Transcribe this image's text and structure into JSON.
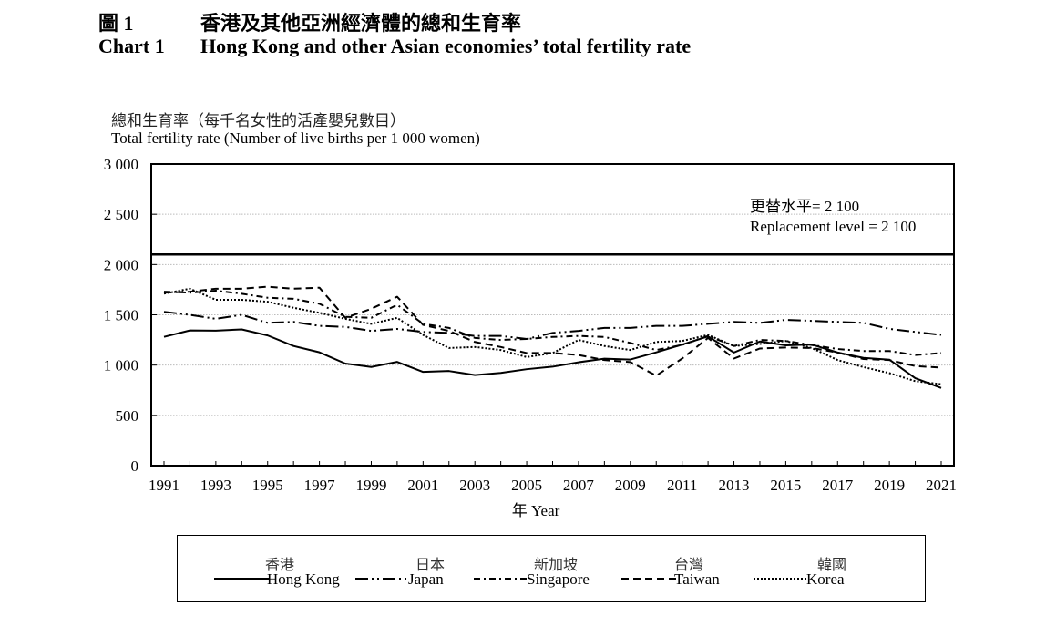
{
  "header": {
    "chart_number_zh": "圖 1",
    "title_zh": "香港及其他亞洲經濟體的總和生育率",
    "chart_number_en": "Chart 1",
    "title_en": "Hong Kong and other Asian economies’ total fertility rate"
  },
  "chart_data": {
    "type": "line",
    "title": "Hong Kong and other Asian economies’ total fertility rate",
    "ylabel_zh": "總和生育率（每千名女性的活產嬰兒數目）",
    "ylabel": "Total fertility rate (Number of live births per 1 000 women)",
    "xlabel": "年 Year",
    "ylim": [
      0,
      3000
    ],
    "xlim": [
      1991,
      2021
    ],
    "yticks": [
      0,
      500,
      1000,
      1500,
      2000,
      2500,
      3000
    ],
    "ytick_labels": [
      "0",
      "500",
      "1 000",
      "1 500",
      "2 000",
      "2 500",
      "3 000"
    ],
    "xtick_labels": [
      "1991",
      "1993",
      "1995",
      "1997",
      "1999",
      "2001",
      "2003",
      "2005",
      "2007",
      "2009",
      "2011",
      "2013",
      "2015",
      "2017",
      "2019",
      "2021"
    ],
    "grid": "horizontal dotted",
    "x": [
      1991,
      1992,
      1993,
      1994,
      1995,
      1996,
      1997,
      1998,
      1999,
      2000,
      2001,
      2002,
      2003,
      2004,
      2005,
      2006,
      2007,
      2008,
      2009,
      2010,
      2011,
      2012,
      2013,
      2014,
      2015,
      2016,
      2017,
      2018,
      2019,
      2020,
      2021
    ],
    "series": [
      {
        "name": "Hong Kong",
        "name_zh": "香港",
        "style": "solid",
        "values": [
          1281,
          1345,
          1343,
          1355,
          1295,
          1190,
          1127,
          1015,
          981,
          1032,
          932,
          941,
          901,
          922,
          959,
          984,
          1028,
          1064,
          1055,
          1127,
          1204,
          1285,
          1125,
          1235,
          1196,
          1205,
          1125,
          1072,
          1054,
          870,
          772
        ]
      },
      {
        "name": "Japan",
        "name_zh": "日本",
        "style": "long-dash-dot-dot",
        "values": [
          1530,
          1500,
          1460,
          1500,
          1420,
          1430,
          1390,
          1380,
          1340,
          1360,
          1330,
          1320,
          1290,
          1290,
          1260,
          1320,
          1340,
          1370,
          1370,
          1390,
          1390,
          1410,
          1430,
          1420,
          1450,
          1440,
          1430,
          1420,
          1360,
          1330,
          1300
        ]
      },
      {
        "name": "Singapore",
        "name_zh": "新加坡",
        "style": "dash-dot",
        "values": [
          1730,
          1720,
          1740,
          1710,
          1670,
          1660,
          1610,
          1480,
          1470,
          1600,
          1410,
          1370,
          1270,
          1250,
          1260,
          1280,
          1290,
          1280,
          1220,
          1150,
          1200,
          1290,
          1190,
          1250,
          1240,
          1200,
          1160,
          1140,
          1140,
          1100,
          1120
        ]
      },
      {
        "name": "Taiwan",
        "name_zh": "台灣",
        "style": "dashed",
        "values": [
          1720,
          1730,
          1760,
          1760,
          1780,
          1760,
          1770,
          1470,
          1560,
          1680,
          1400,
          1340,
          1230,
          1180,
          1120,
          1120,
          1100,
          1050,
          1030,
          895,
          1065,
          1270,
          1065,
          1165,
          1175,
          1170,
          1125,
          1060,
          1050,
          990,
          975
        ]
      },
      {
        "name": "Korea",
        "name_zh": "韓國",
        "style": "dotted",
        "values": [
          1710,
          1760,
          1650,
          1650,
          1630,
          1570,
          1520,
          1460,
          1410,
          1470,
          1300,
          1170,
          1180,
          1150,
          1080,
          1120,
          1250,
          1190,
          1150,
          1230,
          1240,
          1300,
          1190,
          1210,
          1240,
          1170,
          1050,
          980,
          920,
          840,
          810
        ]
      }
    ],
    "reference_line": {
      "value": 2100,
      "label_zh": "更替水平= 2 100",
      "label_en": "Replacement level = 2 100"
    },
    "legend_position": "bottom"
  }
}
